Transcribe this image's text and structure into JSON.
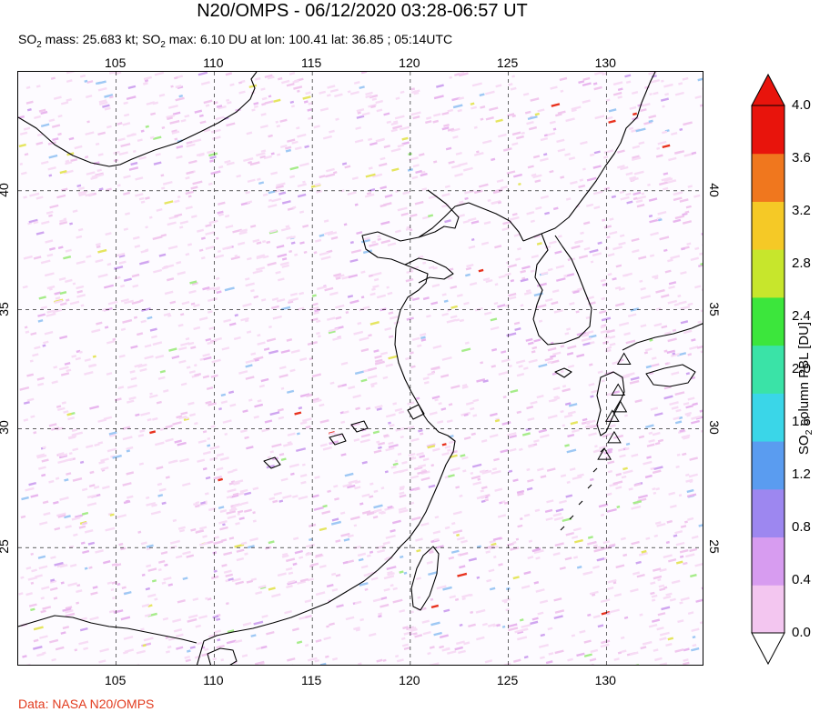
{
  "title": "N20/OMPS - 06/12/2020 03:28-06:57 UT",
  "subtitle": {
    "mass_label": "SO",
    "mass_sub": "2",
    "mass_text": " mass: 25.683 kt; SO",
    "max_sub": "2",
    "max_text": " max: 6.10 DU at lon: 100.41 lat: 36.85 ; 05:14UTC"
  },
  "credit": "Data: NASA N20/OMPS",
  "map": {
    "lon_range": [
      100,
      135
    ],
    "lat_range": [
      20,
      45
    ],
    "lon_ticks": [
      "105",
      "110",
      "115",
      "120",
      "125",
      "130"
    ],
    "lat_ticks": [
      "25",
      "30",
      "35",
      "40"
    ],
    "volcano_marker": "triangle-icon"
  },
  "colorbar": {
    "title_prefix": "SO",
    "title_sub": "2",
    "title_suffix": " column PBL [DU]",
    "ticks": [
      "0.0",
      "0.4",
      "0.8",
      "1.2",
      "1.6",
      "2.0",
      "2.4",
      "2.8",
      "3.2",
      "3.6",
      "4.0"
    ],
    "colors": [
      "#ffffff",
      "#f3c6f0",
      "#d79cf0",
      "#9d87f0",
      "#5a9cf0",
      "#3ad6e8",
      "#3ae3a7",
      "#3ce63c",
      "#c7e62c",
      "#f5c926",
      "#f0771e",
      "#e8140c"
    ]
  }
}
